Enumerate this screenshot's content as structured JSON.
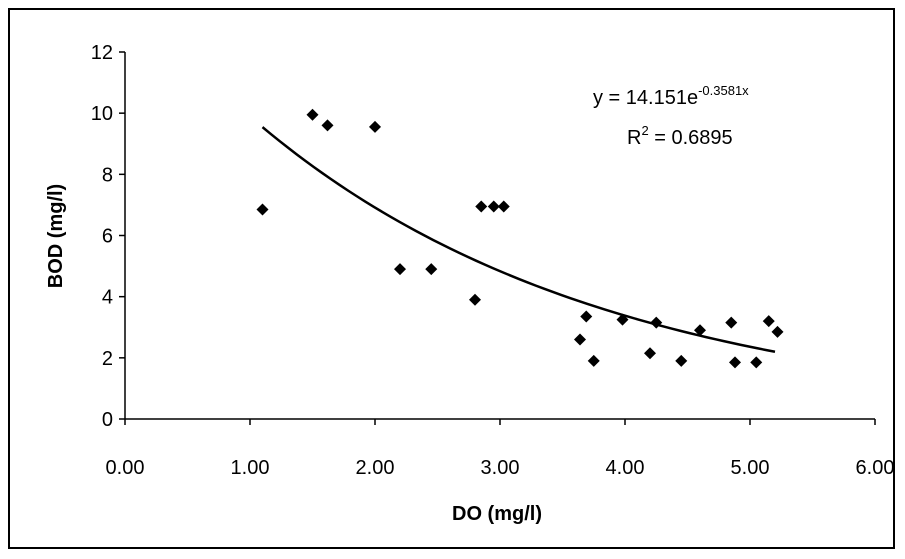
{
  "chart_data": {
    "type": "scatter",
    "title": "",
    "xlabel": "DO (mg/l)",
    "ylabel": "BOD (mg/l)",
    "xlim": [
      0,
      6
    ],
    "ylim": [
      0,
      12
    ],
    "x_ticks": [
      "0.00",
      "1.00",
      "2.00",
      "3.00",
      "4.00",
      "5.00",
      "6.00"
    ],
    "y_ticks": [
      "0",
      "2",
      "4",
      "6",
      "8",
      "10",
      "12"
    ],
    "grid": false,
    "legend": "none",
    "marker": "diamond",
    "colors": {
      "points": "#000000",
      "trendline": "#000000",
      "frame": "#000000"
    },
    "points": [
      {
        "x": 1.1,
        "y": 6.85
      },
      {
        "x": 1.5,
        "y": 9.95
      },
      {
        "x": 1.62,
        "y": 9.6
      },
      {
        "x": 2.0,
        "y": 9.55
      },
      {
        "x": 2.2,
        "y": 4.9
      },
      {
        "x": 2.45,
        "y": 4.9
      },
      {
        "x": 2.8,
        "y": 3.9
      },
      {
        "x": 2.85,
        "y": 6.95
      },
      {
        "x": 2.95,
        "y": 6.95
      },
      {
        "x": 3.03,
        "y": 6.95
      },
      {
        "x": 3.64,
        "y": 2.6
      },
      {
        "x": 3.69,
        "y": 3.35
      },
      {
        "x": 3.75,
        "y": 1.9
      },
      {
        "x": 3.98,
        "y": 3.25
      },
      {
        "x": 4.2,
        "y": 2.15
      },
      {
        "x": 4.25,
        "y": 3.15
      },
      {
        "x": 4.45,
        "y": 1.9
      },
      {
        "x": 4.6,
        "y": 2.9
      },
      {
        "x": 4.85,
        "y": 3.15
      },
      {
        "x": 4.88,
        "y": 1.85
      },
      {
        "x": 5.05,
        "y": 1.85
      },
      {
        "x": 5.15,
        "y": 3.2
      },
      {
        "x": 5.22,
        "y": 2.85
      }
    ],
    "trendline": {
      "type": "exponential",
      "a": 14.151,
      "b": -0.3581,
      "x_start": 1.1,
      "x_end": 5.2,
      "equation_prefix": "y = 14.151e",
      "equation_exponent": "-0.3581x",
      "r2_prefix": "R",
      "r2_exponent": "2",
      "r2_suffix": " = 0.6895"
    }
  }
}
